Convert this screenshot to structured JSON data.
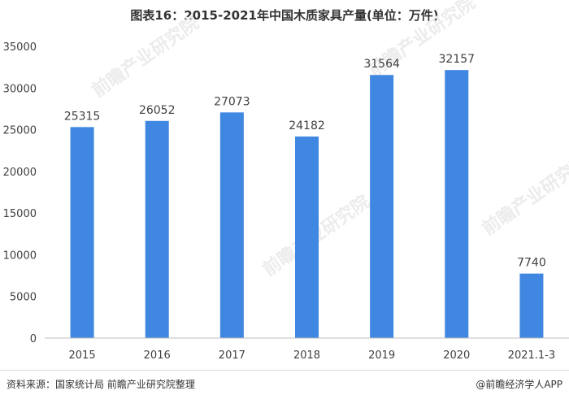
{
  "title": "图表16：2015-2021年中国木质家具产量(单位：万件)",
  "source": "资料来源：国家统计局 前瞻产业研究院整理",
  "credit": "@前瞻经济学人APP",
  "watermark": "前瞻产业研究院",
  "colors": {
    "bar": "#3f87e0",
    "axis": "#bfbfbf",
    "text": "#404040"
  },
  "chart_data": {
    "type": "bar",
    "categories": [
      "2015",
      "2016",
      "2017",
      "2018",
      "2019",
      "2020",
      "2021.1-3"
    ],
    "values": [
      25315,
      26052,
      27073,
      24182,
      31564,
      32157,
      7740
    ],
    "data_labels": [
      "25315",
      "26052",
      "27073",
      "24182",
      "31564",
      "32157",
      "7740"
    ],
    "yticks": [
      0,
      5000,
      10000,
      15000,
      20000,
      25000,
      30000,
      35000
    ],
    "ylim": [
      0,
      35000
    ],
    "grid": false,
    "legend": "none"
  }
}
